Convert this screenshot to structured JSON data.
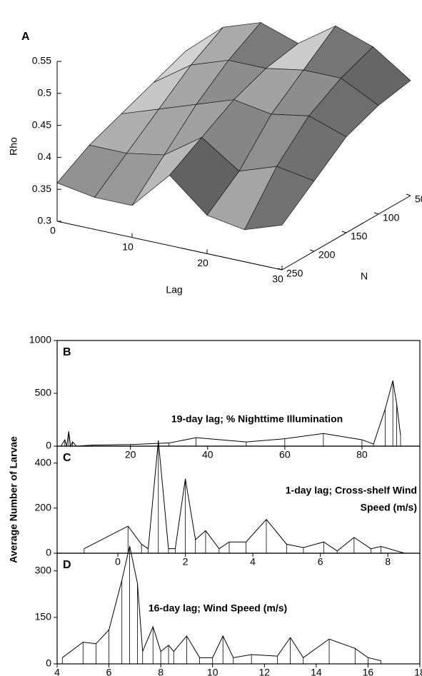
{
  "chart_data": [
    {
      "type": "surface",
      "panel_label": "A",
      "ylabel": "Rho",
      "xlabel": "Lag",
      "zlabel": "N",
      "x": [
        0,
        5,
        10,
        15,
        20,
        25,
        30
      ],
      "z": [
        50,
        100,
        150,
        200,
        250
      ],
      "values": [
        [
          0.45,
          0.43,
          0.41,
          0.39,
          0.36
        ],
        [
          0.5,
          0.47,
          0.43,
          0.39,
          0.35
        ],
        [
          0.52,
          0.49,
          0.45,
          0.4,
          0.35
        ],
        [
          0.5,
          0.49,
          0.47,
          0.44,
          0.41
        ],
        [
          0.54,
          0.5,
          0.46,
          0.4,
          0.36
        ],
        [
          0.52,
          0.5,
          0.47,
          0.42,
          0.35
        ],
        [
          0.48,
          0.47,
          0.45,
          0.41,
          0.37
        ]
      ],
      "xlim": [
        0,
        30
      ],
      "xticks": [
        0,
        10,
        20,
        30
      ],
      "zlim": [
        50,
        250
      ],
      "zticks": [
        50,
        100,
        150,
        200,
        250
      ],
      "ylim": [
        0.3,
        0.55
      ],
      "yticks": [
        0.3,
        0.35,
        0.4,
        0.45,
        0.5,
        0.55
      ],
      "color": "#888888"
    },
    {
      "type": "line",
      "panel_label": "B",
      "annotation": [
        "19-day lag; % Nighttime Illumination"
      ],
      "x": [
        2,
        3,
        3.5,
        4,
        4.5,
        5,
        6,
        10,
        20,
        30,
        37,
        50,
        60,
        70,
        80,
        83,
        86,
        88,
        89,
        90
      ],
      "values": [
        0,
        60,
        0,
        140,
        0,
        40,
        0,
        10,
        15,
        30,
        80,
        40,
        70,
        120,
        60,
        20,
        350,
        620,
        400,
        100
      ],
      "xlim": [
        1,
        95
      ],
      "xticks": [
        20,
        40,
        60,
        80
      ],
      "ylim": [
        0,
        1000
      ],
      "yticks": [
        0,
        500,
        1000
      ],
      "color": "#000000"
    },
    {
      "type": "line",
      "panel_label": "C",
      "ylabel": "Average Number of Larvae",
      "annotation": [
        "1-day lag; Cross-shelf Wind",
        "Speed (m/s)"
      ],
      "x": [
        -1,
        0.3,
        0.7,
        0.9,
        1.2,
        1.5,
        1.7,
        2,
        2.3,
        2.6,
        3,
        3.3,
        3.8,
        4.4,
        5,
        5.5,
        6.1,
        6.5,
        7,
        7.5,
        7.8,
        8.5
      ],
      "values": [
        20,
        120,
        40,
        20,
        500,
        20,
        20,
        330,
        60,
        100,
        20,
        50,
        50,
        150,
        40,
        25,
        50,
        10,
        70,
        20,
        30,
        0
      ],
      "xlim": [
        -1.8,
        8.95
      ],
      "xticks": [
        0,
        2,
        4,
        6,
        8
      ],
      "ylim": [
        0,
        475
      ],
      "yticks": [
        0,
        200,
        400
      ],
      "color": "#000000"
    },
    {
      "type": "line",
      "panel_label": "D",
      "annotation": [
        "16-day lag; Wind Speed (m/s)"
      ],
      "x": [
        4.2,
        5,
        5.5,
        6,
        6.5,
        6.8,
        7.1,
        7.3,
        7.7,
        8,
        8.3,
        8.5,
        9,
        9.5,
        10,
        10.4,
        10.8,
        11.5,
        12.5,
        13,
        13.5,
        14.5,
        15.5,
        16,
        16.5
      ],
      "values": [
        20,
        70,
        65,
        110,
        270,
        380,
        260,
        40,
        120,
        40,
        60,
        40,
        90,
        20,
        20,
        90,
        20,
        30,
        25,
        85,
        20,
        80,
        50,
        20,
        10
      ],
      "xlim": [
        4,
        18
      ],
      "xticks": [
        4,
        6,
        8,
        10,
        12,
        14,
        16,
        18
      ],
      "ylim": [
        0,
        357
      ],
      "yticks": [
        0,
        150,
        300
      ],
      "color": "#000000"
    }
  ]
}
